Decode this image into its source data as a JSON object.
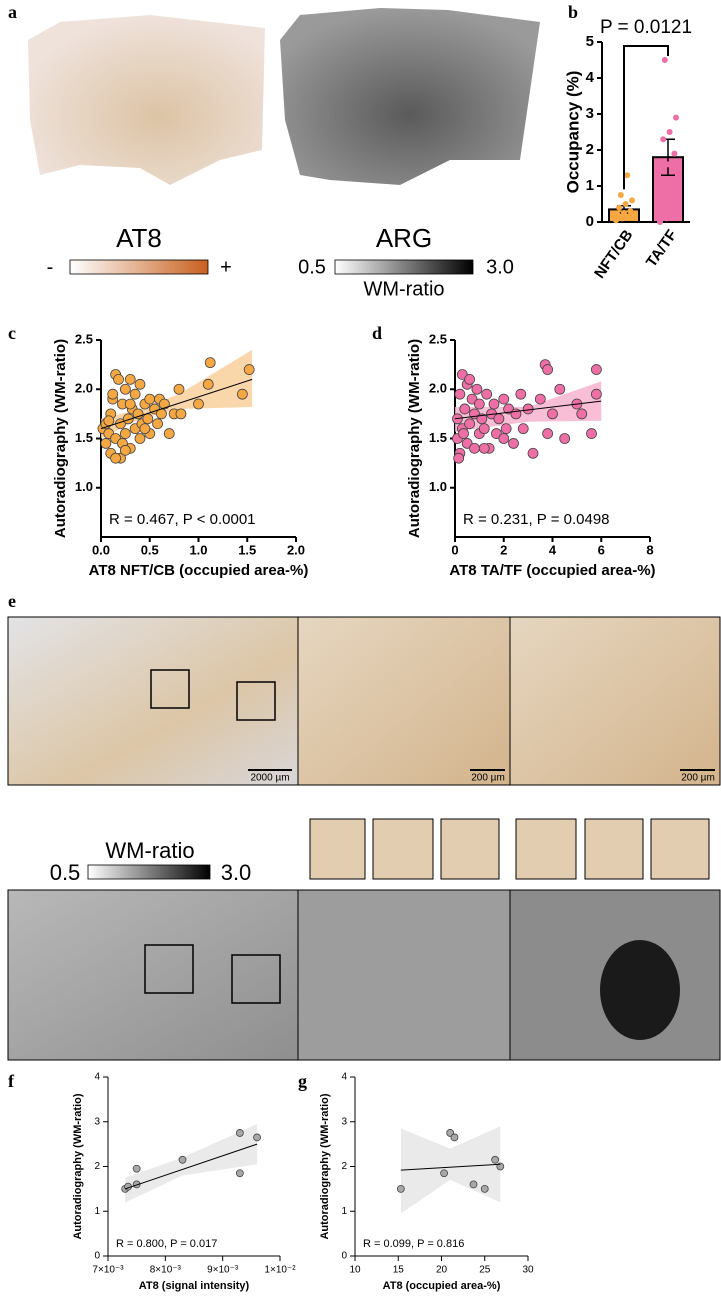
{
  "panel_labels": [
    "a",
    "b",
    "c",
    "d",
    "e",
    "f",
    "g"
  ],
  "panel_a": {
    "at8_label": "AT8",
    "minus": "-",
    "plus": "+",
    "arg_label": "ARG",
    "arg_min": "0.5",
    "arg_max": "3.0",
    "arg_unit": "WM-ratio"
  },
  "panel_e": {
    "scale_bars": [
      "2000 µm",
      "200 µm",
      "200 µm"
    ],
    "colorbar_label": "WM-ratio",
    "colorbar_min": "0.5",
    "colorbar_max": "3.0"
  },
  "chart_data": [
    {
      "type": "bar",
      "annotation": "P = 0.0121",
      "ylabel": "Occupancy (%)",
      "categories": [
        "NFT/CB",
        "TA/TF"
      ],
      "values": [
        0.35,
        1.8
      ],
      "errors": [
        0.1,
        0.5
      ],
      "colors": [
        "#f5a742",
        "#ee6fa6"
      ],
      "points": [
        [
          0.05,
          0.1,
          0.15,
          0.2,
          0.25,
          0.3,
          0.4,
          0.5,
          0.6,
          0.75,
          1.3
        ],
        [
          0.0,
          0.1,
          0.6,
          1.5,
          1.6,
          1.9,
          2.3,
          2.5,
          2.9,
          4.5
        ]
      ],
      "ylim": [
        0,
        5
      ],
      "yticks": [
        0,
        1,
        2,
        3,
        4,
        5
      ]
    },
    {
      "type": "scatter",
      "annotation": "R = 0.467, P < 0.0001",
      "xlabel": "AT8 NFT/CB (occupied area-%)",
      "ylabel": "Autoradiography (WM-ratio)",
      "color": "#f5a742",
      "band_color": "#f9cf9c",
      "x": [
        0.02,
        0.05,
        0.05,
        0.08,
        0.1,
        0.1,
        0.12,
        0.15,
        0.15,
        0.18,
        0.2,
        0.2,
        0.22,
        0.25,
        0.25,
        0.28,
        0.3,
        0.3,
        0.32,
        0.35,
        0.35,
        0.38,
        0.4,
        0.4,
        0.42,
        0.45,
        0.48,
        0.5,
        0.5,
        0.55,
        0.58,
        0.6,
        0.62,
        0.65,
        0.7,
        0.75,
        0.8,
        0.82,
        1.0,
        1.1,
        1.12,
        1.45,
        1.52,
        0.15,
        0.22,
        0.3,
        0.12,
        0.08,
        0.25,
        0.45
      ],
      "values": [
        1.6,
        1.45,
        1.65,
        1.55,
        1.75,
        1.35,
        1.9,
        2.15,
        1.5,
        2.1,
        1.65,
        1.3,
        1.85,
        2.0,
        1.55,
        1.7,
        2.1,
        1.4,
        1.8,
        1.6,
        1.95,
        1.75,
        2.05,
        1.5,
        1.65,
        1.85,
        1.7,
        1.9,
        1.55,
        1.8,
        1.65,
        1.9,
        1.75,
        1.85,
        1.55,
        1.75,
        2.0,
        1.75,
        1.85,
        2.05,
        2.27,
        1.95,
        2.2,
        1.3,
        1.45,
        1.85,
        1.95,
        1.68,
        1.38,
        1.6
      ],
      "fit": {
        "x": [
          0,
          1.55
        ],
        "y": [
          1.6,
          2.1
        ]
      },
      "band": {
        "x": [
          0,
          0.4,
          0.8,
          1.55
        ],
        "upper": [
          1.7,
          1.8,
          1.95,
          2.4
        ],
        "lower": [
          1.5,
          1.7,
          1.8,
          1.82
        ]
      },
      "xlim": [
        0,
        2
      ],
      "ylim": [
        0.5,
        2.5
      ],
      "xticks": [
        {
          "value": 0,
          "label": "0.0"
        },
        0.5,
        {
          "value": 1,
          "label": "1.0"
        },
        1.5,
        {
          "value": 2,
          "label": "2.0"
        }
      ],
      "yticks": [
        {
          "value": 1,
          "label": "1.0"
        },
        1.5,
        {
          "value": 2,
          "label": "2.0"
        },
        2.5
      ]
    },
    {
      "type": "scatter",
      "annotation": "R = 0.231, P = 0.0498",
      "xlabel": "AT8 TA/TF (occupied area-%)",
      "ylabel": "Autoradiography (WM-ratio)",
      "color": "#ee6fa6",
      "band_color": "#f6b3cf",
      "x": [
        0.1,
        0.1,
        0.2,
        0.2,
        0.3,
        0.3,
        0.4,
        0.5,
        0.5,
        0.6,
        0.7,
        0.8,
        0.8,
        0.9,
        1.0,
        1.0,
        1.1,
        1.2,
        1.3,
        1.4,
        1.5,
        1.6,
        1.7,
        1.8,
        2.0,
        2.1,
        2.2,
        2.4,
        2.5,
        2.7,
        2.8,
        3.0,
        3.2,
        3.5,
        3.7,
        3.8,
        3.8,
        4.0,
        4.3,
        4.5,
        5.0,
        5.2,
        5.6,
        5.8,
        5.8,
        0.15,
        0.35,
        0.6,
        1.2,
        2.0
      ],
      "values": [
        1.5,
        1.7,
        1.35,
        1.95,
        1.6,
        2.15,
        1.8,
        1.45,
        2.05,
        1.65,
        1.9,
        1.4,
        1.75,
        2.0,
        1.55,
        1.85,
        1.7,
        1.6,
        1.95,
        1.4,
        1.75,
        1.85,
        1.55,
        1.7,
        1.9,
        1.6,
        1.8,
        1.45,
        1.75,
        1.95,
        1.6,
        1.8,
        1.35,
        1.9,
        2.25,
        1.55,
        2.2,
        1.75,
        2.0,
        1.5,
        1.85,
        1.75,
        1.55,
        2.2,
        1.95,
        1.3,
        1.55,
        2.1,
        1.4,
        1.5
      ],
      "fit": {
        "x": [
          0,
          6
        ],
        "y": [
          1.7,
          1.88
        ]
      },
      "band": {
        "x": [
          0,
          3,
          6
        ],
        "upper": [
          1.82,
          1.82,
          2.08
        ],
        "lower": [
          1.57,
          1.67,
          1.68
        ]
      },
      "xlim": [
        0,
        8
      ],
      "ylim": [
        0.5,
        2.5
      ],
      "xticks": [
        0,
        2,
        4,
        6,
        8
      ],
      "yticks": [
        {
          "value": 1,
          "label": "1.0"
        },
        1.5,
        {
          "value": 2,
          "label": "2.0"
        },
        2.5
      ]
    },
    {
      "type": "scatter",
      "annotation": "R = 0.800, P = 0.017",
      "xlabel": "AT8 (signal intensity)",
      "ylabel": "Autoradiography (WM-ratio)",
      "color": "#a8a8a8",
      "band_color": "#e6e6e6",
      "x": [
        0.0073,
        0.00735,
        0.0075,
        0.0075,
        0.0083,
        0.0093,
        0.0093,
        0.0096
      ],
      "values": [
        1.5,
        1.55,
        1.6,
        1.95,
        2.15,
        2.75,
        1.85,
        2.65
      ],
      "fit": {
        "x": [
          0.0073,
          0.0096
        ],
        "y": [
          1.5,
          2.5
        ]
      },
      "band": {
        "x": [
          0.0073,
          0.0083,
          0.0096
        ],
        "upper": [
          1.75,
          2.2,
          2.95
        ],
        "lower": [
          1.2,
          1.8,
          2.05
        ]
      },
      "xlim": [
        0.007,
        0.01
      ],
      "ylim": [
        0,
        4
      ],
      "xticks": [
        {
          "value": 0.007,
          "label": "7×10⁻³"
        },
        {
          "value": 0.008,
          "label": "8×10⁻³"
        },
        {
          "value": 0.009,
          "label": "9×10⁻³"
        },
        {
          "value": 0.01,
          "label": "1×10⁻²"
        }
      ],
      "yticks": [
        0,
        1,
        2,
        3,
        4
      ]
    },
    {
      "type": "scatter",
      "annotation": "R = 0.099, P = 0.816",
      "xlabel": "AT8 (occupied area-%)",
      "ylabel": "Autoradiography (WM-ratio)",
      "color": "#a8a8a8",
      "band_color": "#e6e6e6",
      "x": [
        15.3,
        20.3,
        21,
        21.5,
        23.7,
        25,
        26.2,
        26.8
      ],
      "values": [
        1.5,
        1.85,
        2.75,
        2.65,
        1.6,
        1.5,
        2.15,
        2.0
      ],
      "fit": {
        "x": [
          15.3,
          26.8
        ],
        "y": [
          1.92,
          2.05
        ]
      },
      "band": {
        "x": [
          15.3,
          21,
          26.8
        ],
        "upper": [
          2.85,
          2.4,
          2.9
        ],
        "lower": [
          0.95,
          1.7,
          1.2
        ]
      },
      "xlim": [
        10,
        30
      ],
      "ylim": [
        0,
        4
      ],
      "xticks": [
        10,
        15,
        20,
        25,
        30
      ],
      "yticks": [
        0,
        1,
        2,
        3,
        4
      ]
    }
  ]
}
